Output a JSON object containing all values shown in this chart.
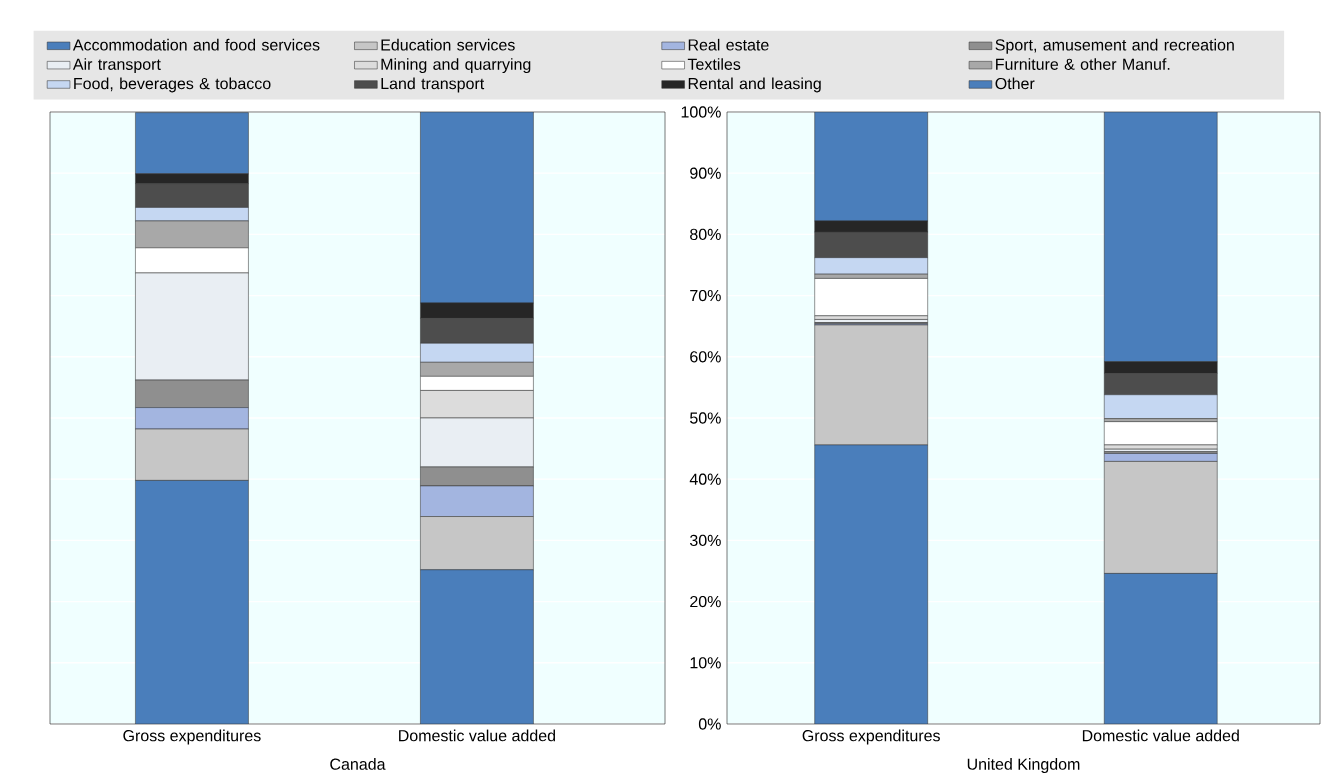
{
  "chart_data": [
    {
      "type": "bar",
      "stacked": true,
      "xlabel": "Canada",
      "categories": [
        "Gross expenditures",
        "Domestic value added"
      ],
      "ylim": [
        0,
        100
      ],
      "yticks": [
        0,
        10,
        20,
        30,
        40,
        50,
        60,
        70,
        80,
        90,
        100
      ],
      "tick_labels": "x",
      "grid": "y",
      "legend": "top",
      "series": [
        {
          "name": "Accommodation and food services",
          "color": "#4a7ebb",
          "values": [
            39.8,
            25.2
          ]
        },
        {
          "name": "Education services",
          "color": "#c6c6c6",
          "values": [
            8.4,
            8.7
          ]
        },
        {
          "name": "Real estate",
          "color": "#a3b5e0",
          "values": [
            3.5,
            5.0
          ]
        },
        {
          "name": "Sport, amusement and recreation",
          "color": "#8f8f8f",
          "values": [
            4.5,
            3.1
          ]
        },
        {
          "name": "Air transport",
          "color": "#e9eef3",
          "values": [
            17.5,
            8.0
          ]
        },
        {
          "name": "Mining and quarrying",
          "color": "#dcdcdc",
          "values": [
            null,
            4.5
          ]
        },
        {
          "name": "Textiles",
          "color": "#ffffff",
          "values": [
            4.1,
            2.3
          ]
        },
        {
          "name": "Furniture & other Manuf.",
          "color": "#a8a8a8",
          "values": [
            4.4,
            2.3
          ]
        },
        {
          "name": "Food, beverages & tobacco",
          "color": "#c5d7f2",
          "values": [
            2.2,
            3.1
          ]
        },
        {
          "name": "Land transport",
          "color": "#4d4d4d",
          "values": [
            3.9,
            4.1
          ]
        },
        {
          "name": "Rental and leasing",
          "color": "#262626",
          "values": [
            1.6,
            2.5
          ]
        },
        {
          "name": "Other",
          "color": "#4a7ebb",
          "values": [
            10.0,
            31.2
          ]
        }
      ]
    },
    {
      "type": "bar",
      "stacked": true,
      "xlabel": "United Kingdom",
      "categories": [
        "Gross expenditures",
        "Domestic value added"
      ],
      "ylim": [
        0,
        100
      ],
      "yticks": [
        {
          "value": 0,
          "label": "0%"
        },
        {
          "value": 10,
          "label": "10%"
        },
        {
          "value": 20,
          "label": "20%"
        },
        {
          "value": 30,
          "label": "30%"
        },
        {
          "value": 40,
          "label": "40%"
        },
        {
          "value": 50,
          "label": "50%"
        },
        {
          "value": 60,
          "label": "60%"
        },
        {
          "value": 70,
          "label": "70%"
        },
        {
          "value": 80,
          "label": "80%"
        },
        {
          "value": 90,
          "label": "90%"
        },
        {
          "value": 100,
          "label": "100%"
        }
      ],
      "grid": "y",
      "series": [
        {
          "color": "#4a7ebb",
          "values": [
            45.6,
            24.6
          ]
        },
        {
          "color": "#c6c6c6",
          "values": [
            19.6,
            18.3
          ]
        },
        {
          "color": "#a3b5e0",
          "values": [
            0.2,
            1.3
          ]
        },
        {
          "color": "#8f8f8f",
          "values": [
            0.2,
            0.3
          ]
        },
        {
          "color": "#e9eef3",
          "values": [
            0.5,
            0.4
          ]
        },
        {
          "color": "#dcdcdc",
          "values": [
            0.6,
            0.7
          ]
        },
        {
          "color": "#ffffff",
          "values": [
            6.1,
            3.8
          ]
        },
        {
          "color": "#a8a8a8",
          "values": [
            0.7,
            0.5
          ]
        },
        {
          "color": "#c5d7f2",
          "values": [
            2.7,
            3.9
          ]
        },
        {
          "color": "#4d4d4d",
          "values": [
            4.2,
            3.5
          ]
        },
        {
          "color": "#262626",
          "values": [
            1.8,
            1.9
          ]
        },
        {
          "color": "#4a7ebb",
          "values": [
            17.8,
            40.8
          ]
        }
      ]
    }
  ]
}
